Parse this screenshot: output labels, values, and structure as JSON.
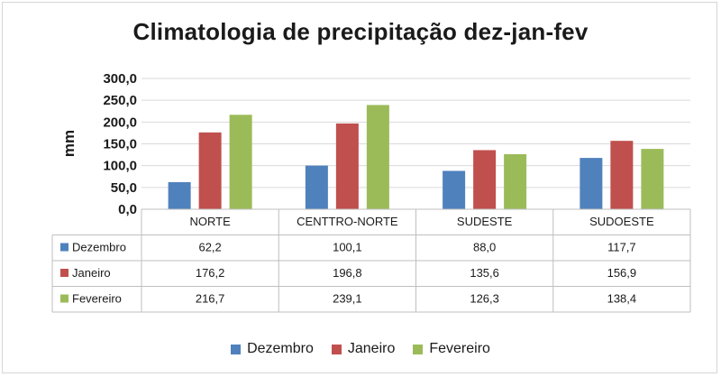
{
  "chart_data": {
    "type": "bar",
    "title": "Climatologia de precipitação dez-jan-fev",
    "ylabel": "mm",
    "xlabel": "",
    "ylim": [
      0,
      300
    ],
    "yticks": [
      "0,0",
      "50,0",
      "100,0",
      "150,0",
      "200,0",
      "250,0",
      "300,0"
    ],
    "grid": true,
    "legend_position": "bottom",
    "categories": [
      "NORTE",
      "CENTTRO-NORTE",
      "SUDESTE",
      "SUDOESTE"
    ],
    "series": [
      {
        "name": "Dezembro",
        "color": "#4f81bd",
        "values": [
          62.2,
          100.1,
          88.0,
          117.7
        ],
        "labels": [
          "62,2",
          "100,1",
          "88,0",
          "117,7"
        ]
      },
      {
        "name": "Janeiro",
        "color": "#c0504d",
        "values": [
          176.2,
          196.8,
          135.6,
          156.9
        ],
        "labels": [
          "176,2",
          "196,8",
          "135,6",
          "156,9"
        ]
      },
      {
        "name": "Fevereiro",
        "color": "#9bbb59",
        "values": [
          216.7,
          239.1,
          126.3,
          138.4
        ],
        "labels": [
          "216,7",
          "239,1",
          "126,3",
          "138,4"
        ]
      }
    ]
  }
}
